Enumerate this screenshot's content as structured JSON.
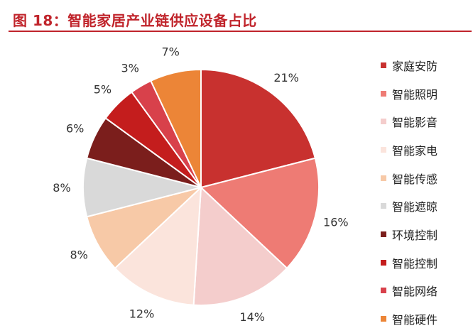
{
  "title": "图 18：智能家居产业链供应设备占比",
  "chart_data": {
    "type": "pie",
    "title": "图 18：智能家居产业链供应设备占比",
    "legend_position": "right",
    "slices": [
      {
        "label": "家庭安防",
        "value": 21,
        "display": "21%",
        "color": "#c8312f"
      },
      {
        "label": "智能照明",
        "value": 16,
        "display": "16%",
        "color": "#ee7b74"
      },
      {
        "label": "智能影音",
        "value": 14,
        "display": "14%",
        "color": "#f4cdcc"
      },
      {
        "label": "智能家电",
        "value": 12,
        "display": "12%",
        "color": "#fbe4dc"
      },
      {
        "label": "智能传感",
        "value": 8,
        "display": "8%",
        "color": "#f7c9a7"
      },
      {
        "label": "智能遮晾",
        "value": 8,
        "display": "8%",
        "color": "#d9d9d9"
      },
      {
        "label": "环境控制",
        "value": 6,
        "display": "6%",
        "color": "#7b1e1c"
      },
      {
        "label": "智能控制",
        "value": 5,
        "display": "5%",
        "color": "#c41d1d"
      },
      {
        "label": "智能网络",
        "value": 3,
        "display": "3%",
        "color": "#d8414b"
      },
      {
        "label": "智能硬件",
        "value": 7,
        "display": "7%",
        "color": "#ec8537"
      }
    ]
  }
}
